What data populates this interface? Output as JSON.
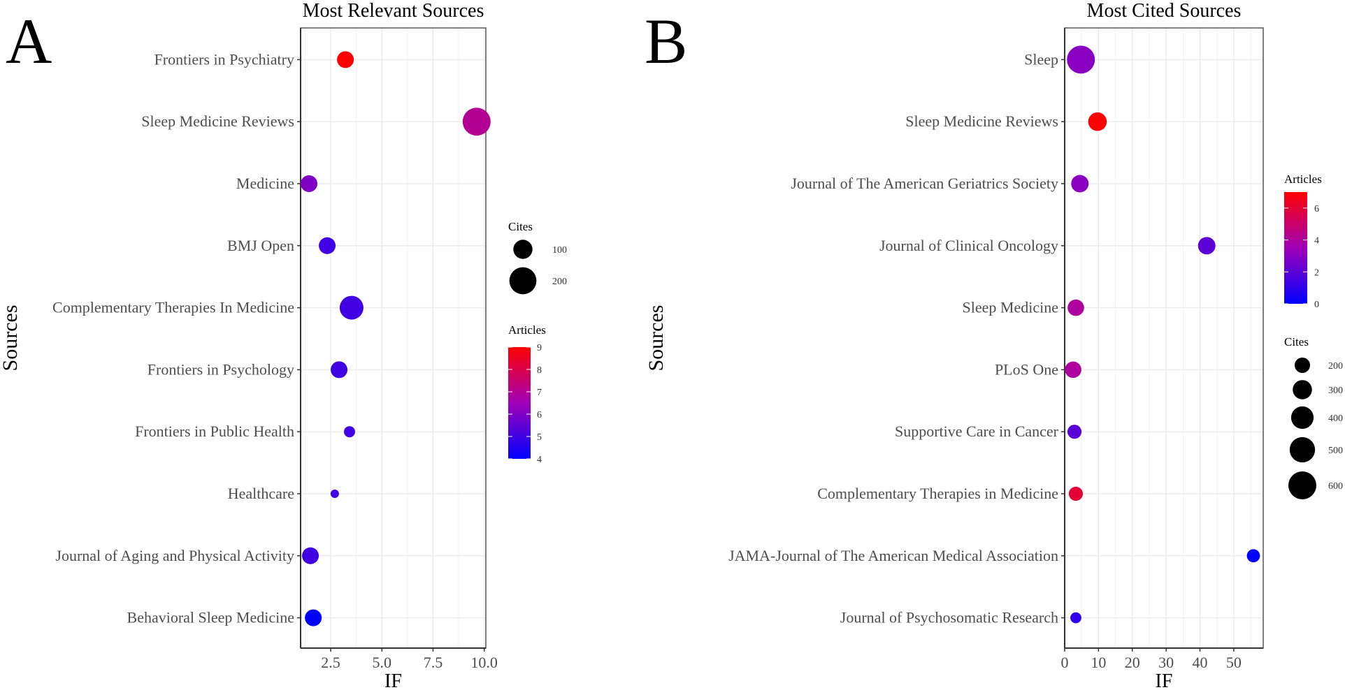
{
  "chart_data": [
    {
      "panel_label": "A",
      "type": "scatter",
      "title": "Most Relevant Sources",
      "xlabel": "IF",
      "ylabel": "Sources",
      "xlim": [
        1.03,
        10.08
      ],
      "xticks": [
        2.5,
        5.0,
        7.5,
        10.0
      ],
      "xtick_labels": [
        "2.5",
        "5.0",
        "7.5",
        "10.0"
      ],
      "grid": true,
      "categories": [
        "Frontiers in Psychiatry",
        "Sleep Medicine Reviews",
        "Medicine",
        "BMJ Open",
        "Complementary Therapies In Medicine",
        "Frontiers in Psychology",
        "Frontiers in Public Health",
        "Healthcare",
        "Journal of Aging and Physical Activity",
        "Behavioral Sleep Medicine"
      ],
      "x": [
        3.22,
        9.63,
        1.44,
        2.33,
        3.52,
        2.91,
        3.42,
        2.7,
        1.51,
        1.65
      ],
      "articles": [
        9,
        7,
        6,
        5,
        5,
        5,
        5,
        5,
        5,
        4
      ],
      "cites": [
        77,
        213,
        77,
        77,
        154,
        77,
        34,
        19,
        77,
        77
      ],
      "size_legend": {
        "title": "Cites",
        "values": [
          100,
          200
        ],
        "labels": [
          "100",
          "200"
        ]
      },
      "color_legend": {
        "title": "Articles",
        "limits": [
          4,
          9
        ],
        "ticks": [
          4,
          5,
          6,
          7,
          8,
          9
        ],
        "labels": [
          "4",
          "5",
          "6",
          "7",
          "8",
          "9"
        ],
        "low": "#0000ff",
        "high": "#ff0000"
      },
      "legend_position": "right"
    },
    {
      "panel_label": "B",
      "type": "scatter",
      "title": "Most Cited Sources",
      "xlabel": "IF",
      "ylabel": "Sources",
      "xlim": [
        0,
        58.7
      ],
      "xticks": [
        0,
        10,
        20,
        30,
        40,
        50
      ],
      "xtick_labels": [
        "0",
        "10",
        "20",
        "30",
        "40",
        "50"
      ],
      "grid": true,
      "categories": [
        "Sleep",
        "Sleep Medicine Reviews",
        "Journal of The American Geriatrics Society",
        "Journal of Clinical Oncology",
        "Sleep Medicine",
        "PLoS One",
        "Supportive Care in Cancer",
        "Complementary Therapies in Medicine",
        "JAMA-Journal of The American Medical Association",
        "Journal of Psychosomatic Research"
      ],
      "x": [
        4.8,
        9.7,
        4.5,
        42.0,
        3.3,
        2.5,
        2.9,
        3.3,
        55.8,
        3.3
      ],
      "articles": [
        3,
        7,
        3,
        2,
        4,
        4,
        2,
        6,
        0,
        1
      ],
      "cites": [
        600,
        280,
        250,
        250,
        225,
        225,
        170,
        170,
        150,
        110
      ],
      "size_legend": {
        "title": "Cites",
        "values": [
          200,
          300,
          400,
          500,
          600
        ],
        "labels": [
          "200",
          "300",
          "400",
          "500",
          "600"
        ]
      },
      "color_legend": {
        "title": "Articles",
        "limits": [
          0,
          7
        ],
        "ticks": [
          0,
          2,
          4,
          6
        ],
        "labels": [
          "0",
          "2",
          "4",
          "6"
        ],
        "low": "#0000ff",
        "high": "#ff0000"
      },
      "legend_position": "right"
    }
  ]
}
